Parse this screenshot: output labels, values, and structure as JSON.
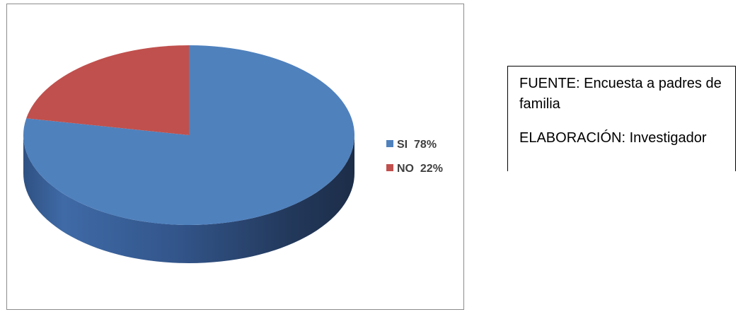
{
  "chart_data": {
    "type": "pie",
    "title": "",
    "categories": [
      "SI",
      "NO"
    ],
    "values": [
      78,
      22
    ],
    "labels": [
      "78%",
      "22%"
    ],
    "colors": [
      "#4F81BD",
      "#C0504D"
    ],
    "style": "3d",
    "legend_position": "right"
  },
  "legend": {
    "items": [
      {
        "label": "SI",
        "value": "78%",
        "color": "#4F81BD"
      },
      {
        "label": "NO",
        "value": "22%",
        "color": "#C0504D"
      }
    ]
  },
  "source_box": {
    "source": "FUENTE: Encuesta a padres de familia",
    "author": "ELABORACIÓN: Investigador"
  }
}
